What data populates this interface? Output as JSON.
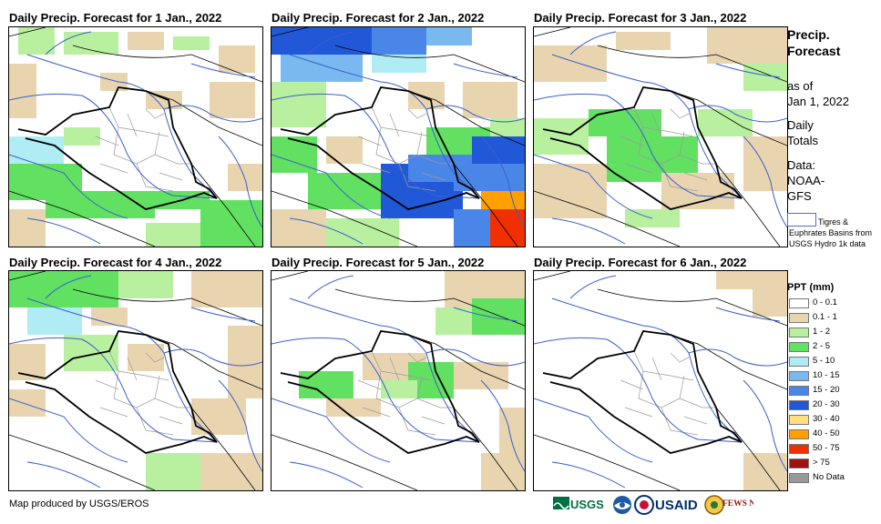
{
  "panels": [
    {
      "title": "Daily Precip. Forecast for 1 Jan., 2022",
      "pattern": "p1"
    },
    {
      "title": "Daily Precip. Forecast for 2 Jan., 2022",
      "pattern": "p2"
    },
    {
      "title": "Daily Precip. Forecast for 3 Jan., 2022",
      "pattern": "p3"
    },
    {
      "title": "Daily Precip. Forecast for 4 Jan., 2022",
      "pattern": "p4"
    },
    {
      "title": "Daily Precip. Forecast for 5 Jan., 2022",
      "pattern": "p5"
    },
    {
      "title": "Daily Precip. Forecast for 6 Jan., 2022",
      "pattern": "p6"
    }
  ],
  "sidebar": {
    "title_line1": "Precip.",
    "title_line2": "Forecast",
    "asof_line1": "as of",
    "asof_line2": "Jan 1, 2022",
    "totals_line1": "Daily",
    "totals_line2": "Totals",
    "data_line1": "Data:",
    "data_line2": "NOAA-",
    "data_line3": "GFS",
    "basin_text": "Tigres & Euphrates Basins from USGS Hydro 1k data"
  },
  "legend": {
    "title": "PPT (mm)",
    "items": [
      {
        "label": "0 - 0.1",
        "color": "#ffffff"
      },
      {
        "label": "0.1 - 1",
        "color": "#e8d5b0"
      },
      {
        "label": "1 - 2",
        "color": "#b8f0a0"
      },
      {
        "label": "2 - 5",
        "color": "#62e062"
      },
      {
        "label": "5 - 10",
        "color": "#b0ecf4"
      },
      {
        "label": "10 - 15",
        "color": "#7ab8f0"
      },
      {
        "label": "15 - 20",
        "color": "#4a86e8"
      },
      {
        "label": "20 - 30",
        "color": "#2058d8"
      },
      {
        "label": "30 - 40",
        "color": "#ffe080"
      },
      {
        "label": "40 - 50",
        "color": "#ffa000"
      },
      {
        "label": "50 - 75",
        "color": "#f03000"
      },
      {
        "label": "> 75",
        "color": "#a01010"
      },
      {
        "label": "No Data",
        "color": "#999999"
      }
    ]
  },
  "footer": {
    "credit": "Map produced by USGS/EROS",
    "logo_usgs": "USGS",
    "logo_usaid": "USAID",
    "logo_fewsnet": "FEWS NET"
  },
  "map_colors": {
    "border": "#000000",
    "province": "#9a9a9a",
    "river": "#3a5fcd"
  }
}
